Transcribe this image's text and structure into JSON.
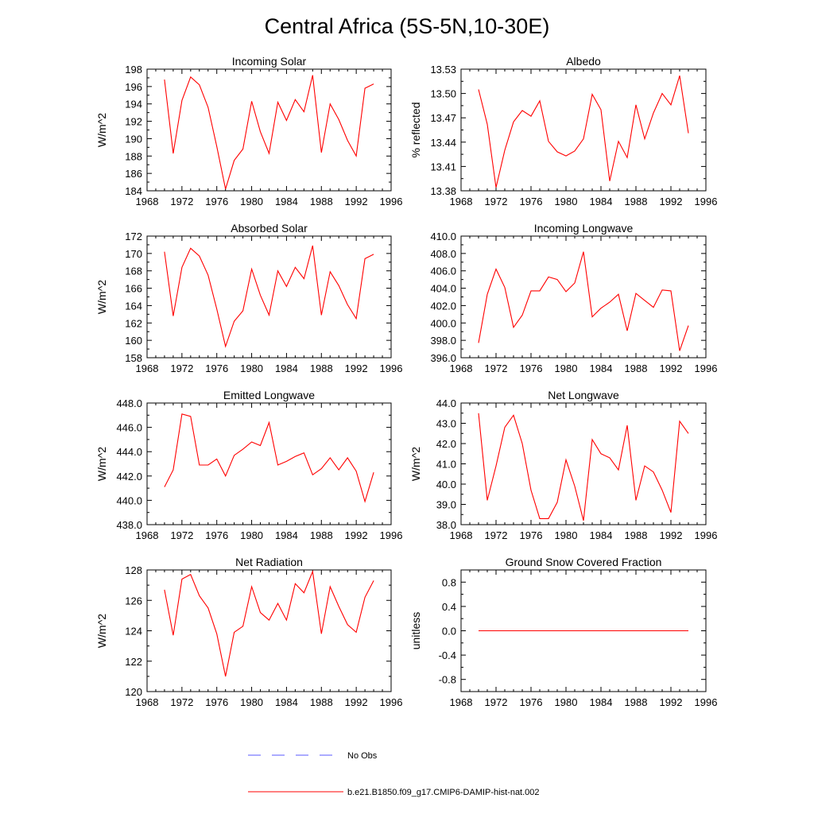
{
  "figure": {
    "title": "Central Africa (5S-5N,10-30E)"
  },
  "colors": {
    "model": "#ff0000",
    "obs": "#5a5aff",
    "axis": "#000000"
  },
  "legend": {
    "obs_label": "No Obs",
    "model_label": "b.e21.B1850.f09_g17.CMIP6-DAMIP-hist-nat.002"
  },
  "chart_data": [
    {
      "type": "line",
      "title": "Incoming Solar",
      "ylabel": "W/m^2",
      "xlim": [
        1968,
        1996
      ],
      "ylim": [
        184,
        198
      ],
      "xticks": [
        "1968",
        "1972",
        "1976",
        "1980",
        "1984",
        "1988",
        "1992",
        "1996"
      ],
      "yticks": [
        "184",
        "186",
        "188",
        "190",
        "192",
        "194",
        "196",
        "198"
      ],
      "x": [
        1970,
        1971,
        1972,
        1973,
        1974,
        1975,
        1976,
        1977,
        1978,
        1979,
        1980,
        1981,
        1982,
        1983,
        1984,
        1985,
        1986,
        1987,
        1988,
        1989,
        1990,
        1991,
        1992,
        1993,
        1994
      ],
      "series": [
        {
          "values": [
            196.8,
            188.3,
            194.4,
            197.1,
            196.2,
            193.6,
            189.1,
            184.2,
            187.5,
            188.8,
            194.3,
            190.8,
            188.3,
            194.2,
            192.1,
            194.5,
            193.1,
            197.3,
            188.4,
            194.0,
            192.2,
            189.8,
            188.0,
            195.8,
            196.3
          ]
        }
      ]
    },
    {
      "type": "line",
      "title": "Albedo",
      "ylabel": "% reflected",
      "xlim": [
        1968,
        1996
      ],
      "ylim": [
        13.38,
        13.53
      ],
      "xticks": [
        "1968",
        "1972",
        "1976",
        "1980",
        "1984",
        "1988",
        "1992",
        "1996"
      ],
      "yticks": [
        "13.38",
        "13.41",
        "13.44",
        "13.47",
        "13.50",
        "13.53"
      ],
      "x": [
        1970,
        1971,
        1972,
        1973,
        1974,
        1975,
        1976,
        1977,
        1978,
        1979,
        1980,
        1981,
        1982,
        1983,
        1984,
        1985,
        1986,
        1987,
        1988,
        1989,
        1990,
        1991,
        1992,
        1993,
        1994
      ],
      "series": [
        {
          "values": [
            13.505,
            13.462,
            13.384,
            13.43,
            13.465,
            13.479,
            13.472,
            13.491,
            13.441,
            13.428,
            13.423,
            13.429,
            13.444,
            13.499,
            13.48,
            13.392,
            13.441,
            13.421,
            13.486,
            13.444,
            13.476,
            13.5,
            13.486,
            13.522,
            13.451
          ]
        }
      ]
    },
    {
      "type": "line",
      "title": "Absorbed Solar",
      "ylabel": "W/m^2",
      "xlim": [
        1968,
        1996
      ],
      "ylim": [
        158,
        172
      ],
      "xticks": [
        "1968",
        "1972",
        "1976",
        "1980",
        "1984",
        "1988",
        "1992",
        "1996"
      ],
      "yticks": [
        "158",
        "160",
        "162",
        "164",
        "166",
        "168",
        "170",
        "172"
      ],
      "x": [
        1970,
        1971,
        1972,
        1973,
        1974,
        1975,
        1976,
        1977,
        1978,
        1979,
        1980,
        1981,
        1982,
        1983,
        1984,
        1985,
        1986,
        1987,
        1988,
        1989,
        1990,
        1991,
        1992,
        1993,
        1994
      ],
      "series": [
        {
          "values": [
            170.2,
            162.8,
            168.4,
            170.6,
            169.7,
            167.5,
            163.6,
            159.3,
            162.2,
            163.4,
            168.2,
            165.2,
            162.9,
            168.0,
            166.2,
            168.4,
            167.1,
            170.9,
            162.9,
            167.9,
            166.3,
            164.1,
            162.5,
            169.4,
            169.9
          ]
        }
      ]
    },
    {
      "type": "line",
      "title": "Incoming Longwave",
      "ylabel": "",
      "xlim": [
        1968,
        1996
      ],
      "ylim": [
        396.0,
        410.0
      ],
      "xticks": [
        "1968",
        "1972",
        "1976",
        "1980",
        "1984",
        "1988",
        "1992",
        "1996"
      ],
      "yticks": [
        "396.0",
        "398.0",
        "400.0",
        "402.0",
        "404.0",
        "406.0",
        "408.0",
        "410.0"
      ],
      "x": [
        1970,
        1971,
        1972,
        1973,
        1974,
        1975,
        1976,
        1977,
        1978,
        1979,
        1980,
        1981,
        1982,
        1983,
        1984,
        1985,
        1986,
        1987,
        1988,
        1989,
        1990,
        1991,
        1992,
        1993,
        1994
      ],
      "series": [
        {
          "values": [
            397.7,
            403.3,
            406.2,
            404.1,
            399.5,
            400.9,
            403.7,
            403.7,
            405.3,
            405.0,
            403.6,
            404.6,
            408.2,
            400.7,
            401.7,
            402.4,
            403.3,
            399.1,
            403.4,
            402.6,
            401.8,
            403.8,
            403.7,
            396.8,
            399.7
          ]
        }
      ]
    },
    {
      "type": "line",
      "title": "Emitted Longwave",
      "ylabel": "W/m^2",
      "xlim": [
        1968,
        1996
      ],
      "ylim": [
        438.0,
        448.0
      ],
      "xticks": [
        "1968",
        "1972",
        "1976",
        "1980",
        "1984",
        "1988",
        "1992",
        "1996"
      ],
      "yticks": [
        "438.0",
        "440.0",
        "442.0",
        "444.0",
        "446.0",
        "448.0"
      ],
      "x": [
        1970,
        1971,
        1972,
        1973,
        1974,
        1975,
        1976,
        1977,
        1978,
        1979,
        1980,
        1981,
        1982,
        1983,
        1984,
        1985,
        1986,
        1987,
        1988,
        1989,
        1990,
        1991,
        1992,
        1993,
        1994
      ],
      "series": [
        {
          "values": [
            441.1,
            442.5,
            447.1,
            446.9,
            442.9,
            442.9,
            443.4,
            442.0,
            443.7,
            444.2,
            444.8,
            444.5,
            446.4,
            442.9,
            443.2,
            443.6,
            443.9,
            442.1,
            442.6,
            443.5,
            442.5,
            443.5,
            442.4,
            439.9,
            442.3
          ]
        }
      ]
    },
    {
      "type": "line",
      "title": "Net Longwave",
      "ylabel": "W/m^2",
      "xlim": [
        1968,
        1996
      ],
      "ylim": [
        38.0,
        44.0
      ],
      "xticks": [
        "1968",
        "1972",
        "1976",
        "1980",
        "1984",
        "1988",
        "1992",
        "1996"
      ],
      "yticks": [
        "38.0",
        "39.0",
        "40.0",
        "41.0",
        "42.0",
        "43.0",
        "44.0"
      ],
      "x": [
        1970,
        1971,
        1972,
        1973,
        1974,
        1975,
        1976,
        1977,
        1978,
        1979,
        1980,
        1981,
        1982,
        1983,
        1984,
        1985,
        1986,
        1987,
        1988,
        1989,
        1990,
        1991,
        1992,
        1993,
        1994
      ],
      "series": [
        {
          "values": [
            43.5,
            39.2,
            40.9,
            42.8,
            43.4,
            42.0,
            39.7,
            38.3,
            38.3,
            39.1,
            41.2,
            39.9,
            38.2,
            42.2,
            41.5,
            41.3,
            40.7,
            42.9,
            39.2,
            40.9,
            40.6,
            39.7,
            38.6,
            43.1,
            42.5
          ]
        }
      ]
    },
    {
      "type": "line",
      "title": "Net Radiation",
      "ylabel": "W/m^2",
      "xlim": [
        1968,
        1996
      ],
      "ylim": [
        120,
        128
      ],
      "xticks": [
        "1968",
        "1972",
        "1976",
        "1980",
        "1984",
        "1988",
        "1992",
        "1996"
      ],
      "yticks": [
        "120",
        "122",
        "124",
        "126",
        "128"
      ],
      "x": [
        1970,
        1971,
        1972,
        1973,
        1974,
        1975,
        1976,
        1977,
        1978,
        1979,
        1980,
        1981,
        1982,
        1983,
        1984,
        1985,
        1986,
        1987,
        1988,
        1989,
        1990,
        1991,
        1992,
        1993,
        1994
      ],
      "series": [
        {
          "values": [
            126.7,
            123.7,
            127.4,
            127.7,
            126.3,
            125.5,
            123.8,
            121.0,
            123.9,
            124.3,
            126.9,
            125.2,
            124.7,
            125.8,
            124.7,
            127.1,
            126.5,
            127.9,
            123.8,
            126.9,
            125.6,
            124.4,
            123.9,
            126.2,
            127.3
          ]
        }
      ]
    },
    {
      "type": "line",
      "title": "Ground Snow Covered Fraction",
      "ylabel": "unitless",
      "xlim": [
        1968,
        1996
      ],
      "ylim": [
        -1.0,
        1.0
      ],
      "xticks": [
        "1968",
        "1972",
        "1976",
        "1980",
        "1984",
        "1988",
        "1992",
        "1996"
      ],
      "yticks": [
        "-0.8",
        "-0.4",
        "0.0",
        "0.4",
        "0.8"
      ],
      "yticks_at": [
        -0.8,
        -0.4,
        0.0,
        0.4,
        0.8
      ],
      "x": [
        1970,
        1971,
        1972,
        1973,
        1974,
        1975,
        1976,
        1977,
        1978,
        1979,
        1980,
        1981,
        1982,
        1983,
        1984,
        1985,
        1986,
        1987,
        1988,
        1989,
        1990,
        1991,
        1992,
        1993,
        1994
      ],
      "series": [
        {
          "values": [
            0,
            0,
            0,
            0,
            0,
            0,
            0,
            0,
            0,
            0,
            0,
            0,
            0,
            0,
            0,
            0,
            0,
            0,
            0,
            0,
            0,
            0,
            0,
            0,
            0
          ]
        }
      ]
    }
  ]
}
